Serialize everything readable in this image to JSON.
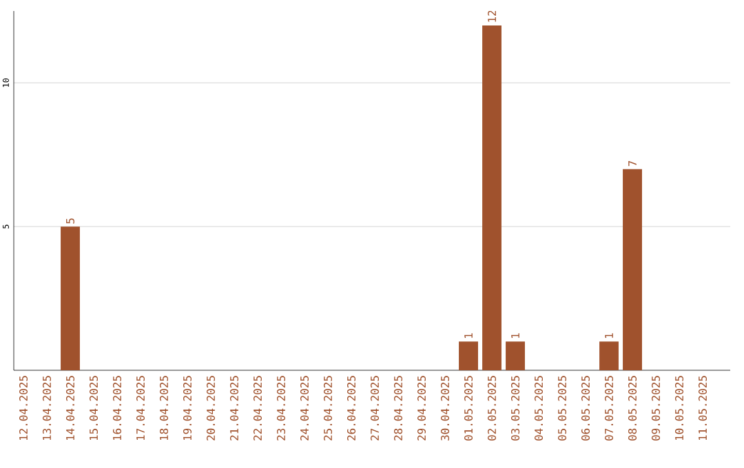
{
  "chart_data": {
    "type": "bar",
    "categories": [
      "12.04.2025",
      "13.04.2025",
      "14.04.2025",
      "15.04.2025",
      "16.04.2025",
      "17.04.2025",
      "18.04.2025",
      "19.04.2025",
      "20.04.2025",
      "21.04.2025",
      "22.04.2025",
      "23.04.2025",
      "24.04.2025",
      "25.04.2025",
      "26.04.2025",
      "27.04.2025",
      "28.04.2025",
      "29.04.2025",
      "30.04.2025",
      "01.05.2025",
      "02.05.2025",
      "03.05.2025",
      "04.05.2025",
      "05.05.2025",
      "06.05.2025",
      "07.05.2025",
      "08.05.2025",
      "09.05.2025",
      "10.05.2025",
      "11.05.2025"
    ],
    "values": [
      0,
      0,
      5,
      0,
      0,
      0,
      0,
      0,
      0,
      0,
      0,
      0,
      0,
      0,
      0,
      0,
      0,
      0,
      0,
      1,
      12,
      1,
      0,
      0,
      0,
      1,
      7,
      0,
      0,
      0
    ],
    "value_labels": [
      null,
      null,
      "5",
      null,
      null,
      null,
      null,
      null,
      null,
      null,
      null,
      null,
      null,
      null,
      null,
      null,
      null,
      null,
      null,
      "1",
      "12",
      "1",
      null,
      null,
      null,
      "1",
      "7",
      null,
      null,
      null
    ],
    "color": "#a0522d",
    "ylim": [
      0,
      12.5
    ],
    "yticks": [
      5,
      10
    ],
    "grid": "y"
  }
}
